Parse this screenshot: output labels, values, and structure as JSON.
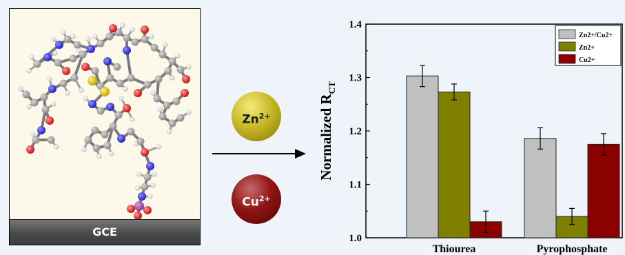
{
  "left_panel": {
    "electrode_label": "GCE"
  },
  "ions": [
    {
      "symbol": "Zn",
      "charge": "2+",
      "color": "#c8b928"
    },
    {
      "symbol": "Cu",
      "charge": "2+",
      "color": "#901515"
    }
  ],
  "chart_data": {
    "type": "bar",
    "categories": [
      "Thiourea",
      "Pyrophosphate"
    ],
    "series": [
      {
        "name": "Zn2+/Cu2+",
        "values": [
          1.303,
          1.186
        ],
        "errors": [
          0.02,
          0.02
        ],
        "color": "#c0c0c0"
      },
      {
        "name": "Zn2+",
        "values": [
          1.273,
          1.04
        ],
        "errors": [
          0.015,
          0.015
        ],
        "color": "#808000"
      },
      {
        "name": "Cu2+",
        "values": [
          1.03,
          1.175
        ],
        "errors": [
          0.02,
          0.02
        ],
        "color": "#8b0000"
      }
    ],
    "ylabel": "Normalized R",
    "ylabel_sub": "CT",
    "ylim": [
      1.0,
      1.4
    ],
    "yticks": [
      "1.0",
      "1.1",
      "1.2",
      "1.3",
      "1.4"
    ],
    "legend_position": "top-right"
  }
}
